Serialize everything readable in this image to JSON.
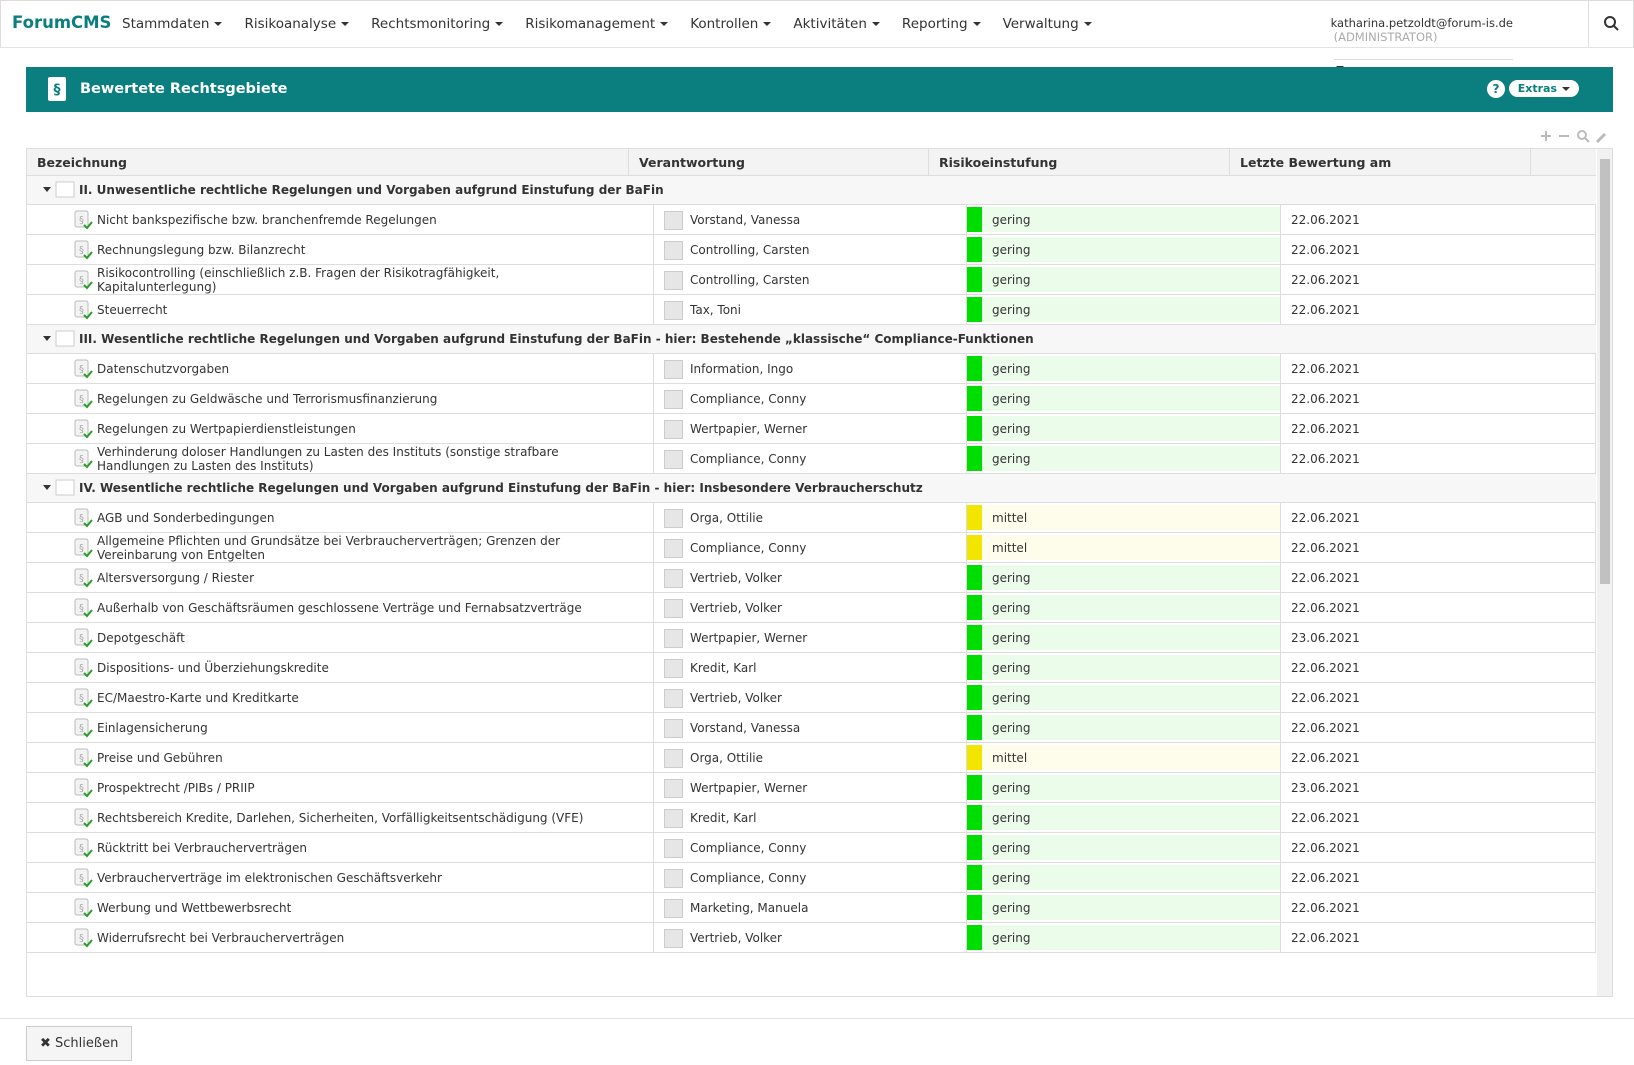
{
  "nav": {
    "brand": "ForumCMS",
    "menu": [
      "Stammdaten",
      "Risikoanalyse",
      "Rechtsmonitoring",
      "Risikomanagement",
      "Kontrollen",
      "Aktivitäten",
      "Reporting",
      "Verwaltung"
    ],
    "user": "katharina.petzoldt@forum-is.de",
    "role": "(ADMINISTRATOR)"
  },
  "panel": {
    "title": "Bewertete Rechtsgebiete",
    "extras": "Extras"
  },
  "table": {
    "columns": [
      "Bezeichnung",
      "Verantwortung",
      "Risikoeinstufung",
      "Letzte Bewertung am"
    ],
    "groups": [
      {
        "title": "II. Unwesentliche rechtliche Regelungen und Vorgaben aufgrund Einstufung der BaFin",
        "rows": [
          {
            "name": "Nicht bankspezifische bzw. branchenfremde Regelungen",
            "owner": "Vorstand, Vanessa",
            "risk": "gering",
            "color": "#00dd00",
            "date": "22.06.2021"
          },
          {
            "name": "Rechnungslegung bzw. Bilanzrecht",
            "owner": "Controlling, Carsten",
            "risk": "gering",
            "color": "#00dd00",
            "date": "22.06.2021"
          },
          {
            "name": "Risikocontrolling (einschließlich z.B. Fragen der Risikotragfähigkeit, Kapitalunterlegung)",
            "owner": "Controlling, Carsten",
            "risk": "gering",
            "color": "#00dd00",
            "date": "22.06.2021"
          },
          {
            "name": "Steuerrecht",
            "owner": "Tax, Toni",
            "risk": "gering",
            "color": "#00dd00",
            "date": "22.06.2021"
          }
        ]
      },
      {
        "title": "III. Wesentliche rechtliche Regelungen und Vorgaben aufgrund Einstufung der BaFin - hier: Bestehende „klassische“ Compliance-Funktionen",
        "rows": [
          {
            "name": "Datenschutzvorgaben",
            "owner": "Information, Ingo",
            "risk": "gering",
            "color": "#00dd00",
            "date": "22.06.2021"
          },
          {
            "name": "Regelungen zu Geldwäsche und Terrorismusfinanzierung",
            "owner": "Compliance, Conny",
            "risk": "gering",
            "color": "#00dd00",
            "date": "22.06.2021"
          },
          {
            "name": "Regelungen zu Wertpapierdienstleistungen",
            "owner": "Wertpapier, Werner",
            "risk": "gering",
            "color": "#00dd00",
            "date": "22.06.2021"
          },
          {
            "name": "Verhinderung doloser Handlungen zu Lasten des Instituts (sonstige strafbare Handlungen zu Lasten des Instituts)",
            "owner": "Compliance, Conny",
            "risk": "gering",
            "color": "#00dd00",
            "date": "22.06.2021"
          }
        ]
      },
      {
        "title": "IV. Wesentliche rechtliche Regelungen und Vorgaben aufgrund Einstufung der BaFin - hier: Insbesondere Verbraucherschutz",
        "rows": [
          {
            "name": "AGB und Sonderbedingungen",
            "owner": "Orga, Ottilie",
            "risk": "mittel",
            "color": "#f2e600",
            "date": "22.06.2021"
          },
          {
            "name": "Allgemeine Pflichten und Grundsätze bei Verbraucherverträgen; Grenzen der Vereinbarung von Entgelten",
            "owner": "Compliance, Conny",
            "risk": "mittel",
            "color": "#f2e600",
            "date": "22.06.2021"
          },
          {
            "name": "Altersversorgung / Riester",
            "owner": "Vertrieb, Volker",
            "risk": "gering",
            "color": "#00dd00",
            "date": "22.06.2021"
          },
          {
            "name": "Außerhalb von Geschäftsräumen geschlossene Verträge und Fernabsatzverträge",
            "owner": "Vertrieb, Volker",
            "risk": "gering",
            "color": "#00dd00",
            "date": "22.06.2021"
          },
          {
            "name": "Depotgeschäft",
            "owner": "Wertpapier, Werner",
            "risk": "gering",
            "color": "#00dd00",
            "date": "23.06.2021"
          },
          {
            "name": "Dispositions- und Überziehungskredite",
            "owner": "Kredit, Karl",
            "risk": "gering",
            "color": "#00dd00",
            "date": "22.06.2021"
          },
          {
            "name": "EC/Maestro-Karte und Kreditkarte",
            "owner": "Vertrieb, Volker",
            "risk": "gering",
            "color": "#00dd00",
            "date": "22.06.2021"
          },
          {
            "name": "Einlagensicherung",
            "owner": "Vorstand, Vanessa",
            "risk": "gering",
            "color": "#00dd00",
            "date": "22.06.2021"
          },
          {
            "name": "Preise und Gebühren",
            "owner": "Orga, Ottilie",
            "risk": "mittel",
            "color": "#f2e600",
            "date": "22.06.2021"
          },
          {
            "name": "Prospektrecht /PIBs / PRIIP",
            "owner": "Wertpapier, Werner",
            "risk": "gering",
            "color": "#00dd00",
            "date": "23.06.2021"
          },
          {
            "name": "Rechtsbereich Kredite, Darlehen, Sicherheiten, Vorfälligkeitsentschädigung (VFE)",
            "owner": "Kredit, Karl",
            "risk": "gering",
            "color": "#00dd00",
            "date": "22.06.2021"
          },
          {
            "name": "Rücktritt bei Verbraucherverträgen",
            "owner": "Compliance, Conny",
            "risk": "gering",
            "color": "#00dd00",
            "date": "22.06.2021"
          },
          {
            "name": "Verbraucherverträge im elektronischen Geschäftsverkehr",
            "owner": "Compliance, Conny",
            "risk": "gering",
            "color": "#00dd00",
            "date": "22.06.2021"
          },
          {
            "name": "Werbung und Wettbewerbsrecht",
            "owner": "Marketing, Manuela",
            "risk": "gering",
            "color": "#00dd00",
            "date": "22.06.2021"
          },
          {
            "name": "Widerrufsrecht bei Verbraucherverträgen",
            "owner": "Vertrieb, Volker",
            "risk": "gering",
            "color": "#00dd00",
            "date": "22.06.2021"
          }
        ]
      }
    ]
  },
  "footer": {
    "close": "Schließen"
  }
}
